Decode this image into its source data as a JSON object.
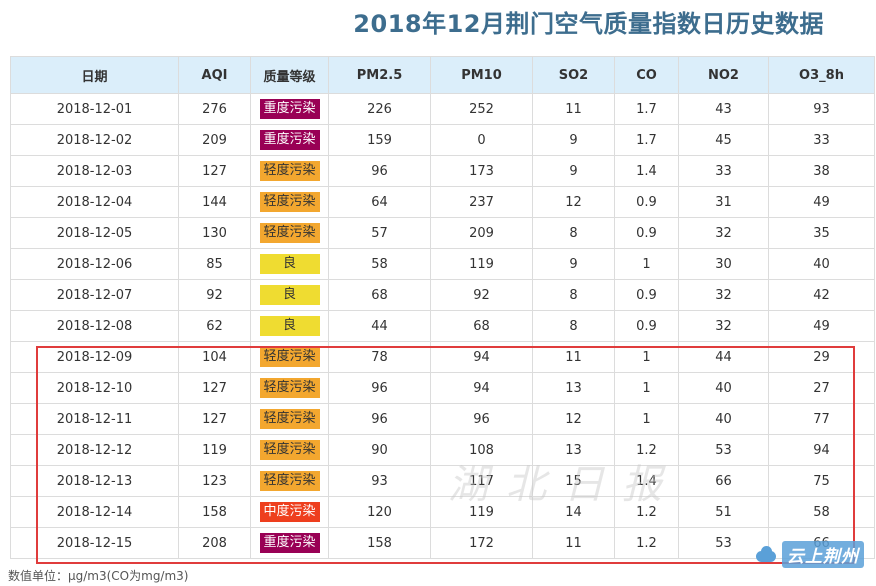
{
  "title": "2018年12月荆门空气质量指数日历史数据",
  "columns": [
    "日期",
    "AQI",
    "质量等级",
    "PM2.5",
    "PM10",
    "SO2",
    "CO",
    "NO2",
    "O3_8h"
  ],
  "grade_colors": {
    "重度污染": "#990055",
    "中度污染": "#ee3f1e",
    "轻度污染": "#f3a72f",
    "良": "#efdc31"
  },
  "grade_text_colors": {
    "重度污染": "#ffffff",
    "中度污染": "#ffffff",
    "轻度污染": "#333333",
    "良": "#333333"
  },
  "highlight_color": "#e03c3c",
  "rows": [
    {
      "date": "2018-12-01",
      "aqi": "276",
      "grade": "重度污染",
      "pm25": "226",
      "pm10": "252",
      "so2": "11",
      "co": "1.7",
      "no2": "43",
      "o3": "93"
    },
    {
      "date": "2018-12-02",
      "aqi": "209",
      "grade": "重度污染",
      "pm25": "159",
      "pm10": "0",
      "so2": "9",
      "co": "1.7",
      "no2": "45",
      "o3": "33"
    },
    {
      "date": "2018-12-03",
      "aqi": "127",
      "grade": "轻度污染",
      "pm25": "96",
      "pm10": "173",
      "so2": "9",
      "co": "1.4",
      "no2": "33",
      "o3": "38"
    },
    {
      "date": "2018-12-04",
      "aqi": "144",
      "grade": "轻度污染",
      "pm25": "64",
      "pm10": "237",
      "so2": "12",
      "co": "0.9",
      "no2": "31",
      "o3": "49"
    },
    {
      "date": "2018-12-05",
      "aqi": "130",
      "grade": "轻度污染",
      "pm25": "57",
      "pm10": "209",
      "so2": "8",
      "co": "0.9",
      "no2": "32",
      "o3": "35"
    },
    {
      "date": "2018-12-06",
      "aqi": "85",
      "grade": "良",
      "pm25": "58",
      "pm10": "119",
      "so2": "9",
      "co": "1",
      "no2": "30",
      "o3": "40"
    },
    {
      "date": "2018-12-07",
      "aqi": "92",
      "grade": "良",
      "pm25": "68",
      "pm10": "92",
      "so2": "8",
      "co": "0.9",
      "no2": "32",
      "o3": "42"
    },
    {
      "date": "2018-12-08",
      "aqi": "62",
      "grade": "良",
      "pm25": "44",
      "pm10": "68",
      "so2": "8",
      "co": "0.9",
      "no2": "32",
      "o3": "49"
    },
    {
      "date": "2018-12-09",
      "aqi": "104",
      "grade": "轻度污染",
      "pm25": "78",
      "pm10": "94",
      "so2": "11",
      "co": "1",
      "no2": "44",
      "o3": "29"
    },
    {
      "date": "2018-12-10",
      "aqi": "127",
      "grade": "轻度污染",
      "pm25": "96",
      "pm10": "94",
      "so2": "13",
      "co": "1",
      "no2": "40",
      "o3": "27"
    },
    {
      "date": "2018-12-11",
      "aqi": "127",
      "grade": "轻度污染",
      "pm25": "96",
      "pm10": "96",
      "so2": "12",
      "co": "1",
      "no2": "40",
      "o3": "77"
    },
    {
      "date": "2018-12-12",
      "aqi": "119",
      "grade": "轻度污染",
      "pm25": "90",
      "pm10": "108",
      "so2": "13",
      "co": "1.2",
      "no2": "53",
      "o3": "94"
    },
    {
      "date": "2018-12-13",
      "aqi": "123",
      "grade": "轻度污染",
      "pm25": "93",
      "pm10": "117",
      "so2": "15",
      "co": "1.4",
      "no2": "66",
      "o3": "75"
    },
    {
      "date": "2018-12-14",
      "aqi": "158",
      "grade": "中度污染",
      "pm25": "120",
      "pm10": "119",
      "so2": "14",
      "co": "1.2",
      "no2": "51",
      "o3": "58"
    },
    {
      "date": "2018-12-15",
      "aqi": "208",
      "grade": "重度污染",
      "pm25": "158",
      "pm10": "172",
      "so2": "11",
      "co": "1.2",
      "no2": "53",
      "o3": "66"
    }
  ],
  "footnote": "数值单位：μg/m3(CO为mg/m3)",
  "watermark": "湖北日报",
  "brand": {
    "icon": "cloud-icon",
    "text": "云上荆州"
  }
}
